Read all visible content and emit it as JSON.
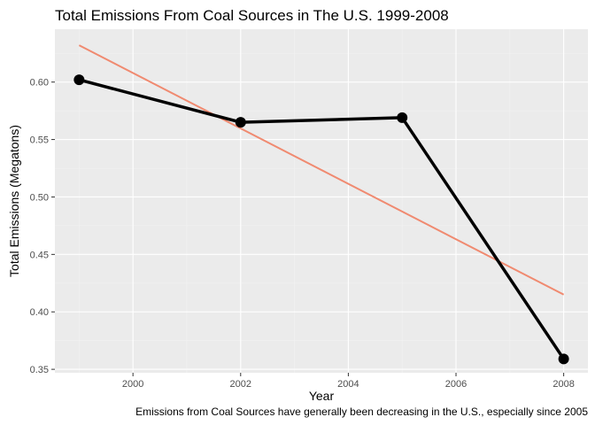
{
  "chart_data": {
    "type": "line",
    "title": "Total Emissions From Coal Sources in The U.S. 1999-2008",
    "xlabel": "Year",
    "ylabel": "Total Emissions  (Megatons)",
    "caption": "Emissions from Coal Sources have generally been decreasing in the U.S., especially since 2005",
    "xlim": [
      1998.55,
      2008.45
    ],
    "ylim": [
      0.347,
      0.646
    ],
    "x_ticks": [
      2000,
      2002,
      2004,
      2006,
      2008
    ],
    "x_tick_labels": [
      "2000",
      "2002",
      "2004",
      "2006",
      "2008"
    ],
    "y_ticks": [
      0.35,
      0.4,
      0.45,
      0.5,
      0.55,
      0.6
    ],
    "y_tick_labels": [
      "0.35",
      "0.40",
      "0.45",
      "0.50",
      "0.55",
      "0.60"
    ],
    "grid": true,
    "legend": "none",
    "series": [
      {
        "x": [
          1999,
          2002,
          2005,
          2008
        ],
        "values": [
          0.602,
          0.565,
          0.569,
          0.359
        ],
        "color": "#000000",
        "markers": true
      }
    ],
    "trend_line": {
      "x": [
        1999,
        2008
      ],
      "values": [
        0.632,
        0.415
      ],
      "color": "#f08a70"
    },
    "colors": {
      "panel_background": "#ebebeb",
      "grid_major": "#ffffff",
      "grid_minor": "#f2f2f2"
    }
  }
}
